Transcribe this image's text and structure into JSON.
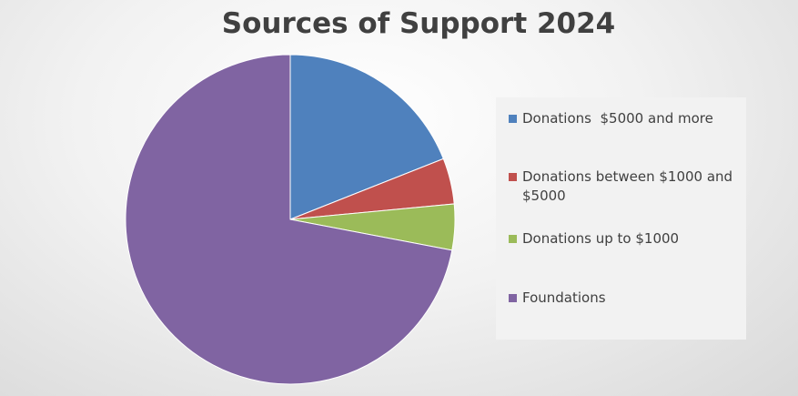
{
  "chart_data": {
    "type": "pie",
    "title": "Sources of Support 2024",
    "categories": [
      "Donations  $5000 and more",
      "Donations between $1000 and $5000",
      "Donations up to $1000",
      "Foundations"
    ],
    "values": [
      19,
      4.5,
      4.5,
      72
    ],
    "colors": [
      "#4f81bd",
      "#c0504d",
      "#9bbb59",
      "#8064a2"
    ],
    "legend": "right"
  }
}
